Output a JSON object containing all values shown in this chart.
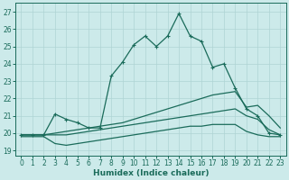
{
  "xlabel": "Humidex (Indice chaleur)",
  "xlim": [
    -0.5,
    23.5
  ],
  "ylim": [
    18.7,
    27.5
  ],
  "xticks": [
    0,
    1,
    2,
    3,
    4,
    5,
    6,
    7,
    8,
    9,
    10,
    11,
    12,
    13,
    14,
    15,
    16,
    17,
    18,
    19,
    20,
    21,
    22,
    23
  ],
  "yticks": [
    19,
    20,
    21,
    22,
    23,
    24,
    25,
    26,
    27
  ],
  "background_color": "#cceaea",
  "grid_color": "#aed4d4",
  "line_color": "#1a6b5a",
  "line1_marker": {
    "x": [
      0,
      1,
      2,
      3,
      4,
      5,
      6,
      7,
      8,
      9,
      10,
      11,
      12,
      13,
      14,
      15,
      16,
      17,
      18,
      19,
      20,
      21,
      22,
      23
    ],
    "y": [
      19.9,
      19.9,
      19.9,
      21.1,
      20.8,
      20.6,
      20.3,
      20.3,
      23.3,
      24.1,
      25.1,
      25.6,
      25.0,
      25.6,
      26.9,
      25.6,
      25.3,
      23.8,
      24.0,
      22.6,
      21.4,
      21.0,
      20.0,
      19.9
    ]
  },
  "line2_nomarker": {
    "x": [
      0,
      1,
      2,
      3,
      4,
      5,
      6,
      7,
      8,
      9,
      10,
      11,
      12,
      13,
      14,
      15,
      16,
      17,
      18,
      19,
      20,
      21,
      22,
      23
    ],
    "y": [
      19.9,
      19.9,
      19.9,
      20.0,
      20.1,
      20.2,
      20.3,
      20.4,
      20.5,
      20.6,
      20.8,
      21.0,
      21.2,
      21.4,
      21.6,
      21.8,
      22.0,
      22.2,
      22.3,
      22.4,
      21.5,
      21.6,
      21.0,
      20.3
    ]
  },
  "line3_nomarker": {
    "x": [
      0,
      1,
      2,
      3,
      4,
      5,
      6,
      7,
      8,
      9,
      10,
      11,
      12,
      13,
      14,
      15,
      16,
      17,
      18,
      19,
      20,
      21,
      22,
      23
    ],
    "y": [
      19.9,
      19.9,
      19.9,
      19.9,
      19.9,
      20.0,
      20.1,
      20.2,
      20.3,
      20.4,
      20.5,
      20.6,
      20.7,
      20.8,
      20.9,
      21.0,
      21.1,
      21.2,
      21.3,
      21.4,
      21.0,
      20.8,
      20.2,
      19.9
    ]
  },
  "line4_nomarker": {
    "x": [
      0,
      1,
      2,
      3,
      4,
      5,
      6,
      7,
      8,
      9,
      10,
      11,
      12,
      13,
      14,
      15,
      16,
      17,
      18,
      19,
      20,
      21,
      22,
      23
    ],
    "y": [
      19.8,
      19.8,
      19.8,
      19.4,
      19.3,
      19.4,
      19.5,
      19.6,
      19.7,
      19.8,
      19.9,
      20.0,
      20.1,
      20.2,
      20.3,
      20.4,
      20.4,
      20.5,
      20.5,
      20.5,
      20.1,
      19.9,
      19.8,
      19.8
    ]
  }
}
